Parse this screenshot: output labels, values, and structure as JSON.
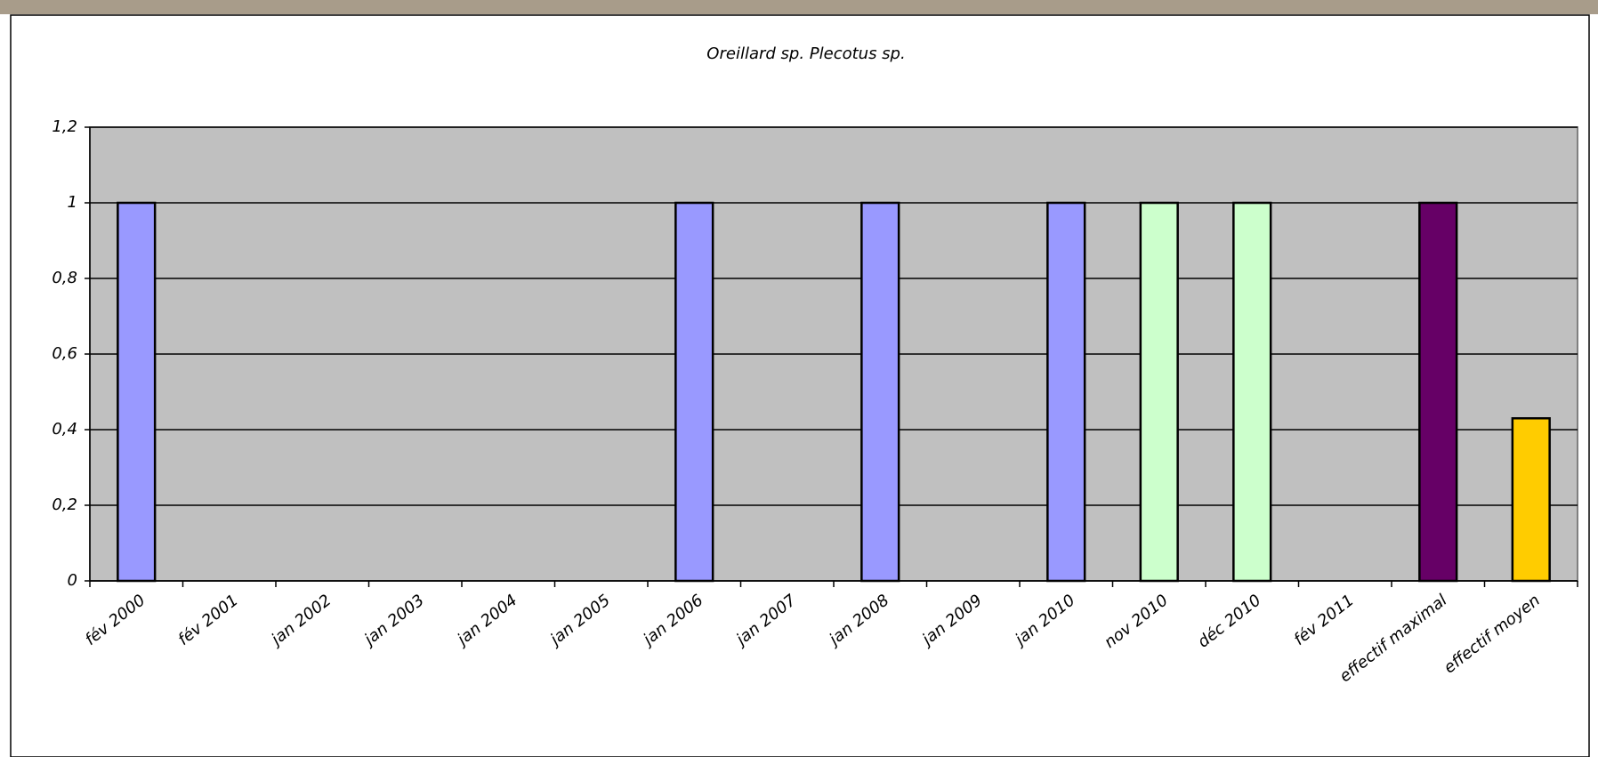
{
  "chart_data": {
    "type": "bar",
    "title": "Oreillard sp. Plecotus sp.",
    "categories": [
      "fév 2000",
      "fév 2001",
      "jan 2002",
      "jan 2003",
      "jan 2004",
      "jan 2005",
      "jan 2006",
      "jan 2007",
      "jan 2008",
      "jan 2009",
      "jan 2010",
      "nov 2010",
      "déc 2010",
      "fév 2011",
      "effectif maximal",
      "effectif moyen"
    ],
    "values": [
      1,
      0,
      0,
      0,
      0,
      0,
      1,
      0,
      1,
      0,
      1,
      1,
      1,
      0,
      1,
      0.43
    ],
    "colors": [
      "#9999ff",
      "#9999ff",
      "#9999ff",
      "#9999ff",
      "#9999ff",
      "#9999ff",
      "#9999ff",
      "#9999ff",
      "#9999ff",
      "#9999ff",
      "#9999ff",
      "#ccffcc",
      "#ccffcc",
      "#ccffcc",
      "#660066",
      "#ffcc00"
    ],
    "ylim": [
      0,
      1.2
    ],
    "yticks": [
      0,
      {
        "value": 0.2,
        "label": "0,2"
      },
      {
        "value": 0.4,
        "label": "0,4"
      },
      {
        "value": 0.6,
        "label": "0,6"
      },
      {
        "value": 0.8,
        "label": "0,8"
      },
      1,
      {
        "value": 1.2,
        "label": "1,2"
      }
    ],
    "grid": true
  }
}
